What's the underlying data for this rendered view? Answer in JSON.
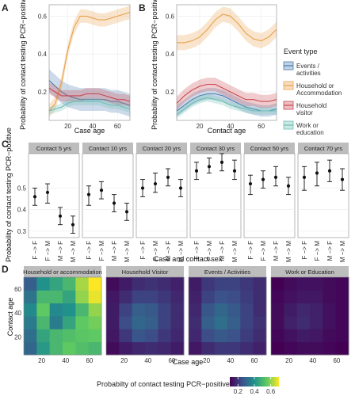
{
  "panels": {
    "A": {
      "label": "A",
      "xlabel": "Case age",
      "ylabel": "Probability of contact testing PCR−positive"
    },
    "B": {
      "label": "B",
      "xlabel": "Contact age",
      "ylabel": "Probability of contact testing PCR−positive"
    },
    "C": {
      "label": "C",
      "xlabel": "Case and contact sex",
      "ylabel": "Probability of contact testing PCR−positive"
    },
    "D": {
      "label": "D",
      "xlabel": "Case age",
      "ylabel": "Contact age"
    }
  },
  "legend": {
    "title": "Event type",
    "items": [
      {
        "name": "Events / activities",
        "color": "#4a7bb0"
      },
      {
        "name": "Household or Accommodation",
        "color": "#e8a04a"
      },
      {
        "name": "Household visitor",
        "color": "#c9474f"
      },
      {
        "name": "Work or education",
        "color": "#6dbdb4"
      }
    ]
  },
  "colorbar": {
    "title": "Probabilty of contact testing PCR−positive",
    "ticks": [
      "0.2",
      "0.4",
      "0.6"
    ],
    "min": 0.1,
    "max": 0.7
  },
  "chart_data": [
    {
      "panel": "A",
      "type": "line",
      "xlim": [
        5,
        70
      ],
      "ylim": [
        0.05,
        0.66
      ],
      "xticks": [
        20,
        40,
        60
      ],
      "yticks": [
        0.2,
        0.4,
        0.6
      ],
      "x": [
        5,
        10,
        15,
        20,
        25,
        30,
        35,
        40,
        45,
        50,
        55,
        60,
        65,
        70
      ],
      "series": [
        {
          "name": "Events / activities",
          "color": "#4a7bb0",
          "y": [
            0.26,
            0.23,
            0.2,
            0.18,
            0.17,
            0.16,
            0.16,
            0.16,
            0.16,
            0.16,
            0.15,
            0.15,
            0.14,
            0.13
          ],
          "band": 0.06
        },
        {
          "name": "Household or Accommodation",
          "color": "#e8a04a",
          "y": [
            0.1,
            0.14,
            0.25,
            0.42,
            0.54,
            0.6,
            0.6,
            0.59,
            0.58,
            0.58,
            0.59,
            0.6,
            0.61,
            0.62
          ],
          "band": 0.035
        },
        {
          "name": "Household visitor",
          "color": "#c9474f",
          "y": [
            0.22,
            0.2,
            0.18,
            0.18,
            0.18,
            0.18,
            0.19,
            0.19,
            0.19,
            0.18,
            0.17,
            0.16,
            0.16,
            0.15
          ],
          "band": 0.03
        },
        {
          "name": "Work or education",
          "color": "#6dbdb4",
          "y": [
            0.1,
            0.11,
            0.12,
            0.14,
            0.15,
            0.15,
            0.15,
            0.15,
            0.15,
            0.14,
            0.13,
            0.13,
            0.12,
            0.11
          ],
          "band": 0.02
        }
      ]
    },
    {
      "panel": "B",
      "type": "line",
      "xlim": [
        5,
        70
      ],
      "ylim": [
        0.05,
        0.66
      ],
      "xticks": [
        20,
        40,
        60
      ],
      "yticks": [
        0.2,
        0.4,
        0.6
      ],
      "x": [
        5,
        10,
        15,
        20,
        25,
        30,
        35,
        40,
        45,
        50,
        55,
        60,
        65,
        70
      ],
      "series": [
        {
          "name": "Events / activities",
          "color": "#4a7bb0",
          "y": [
            0.1,
            0.13,
            0.16,
            0.18,
            0.19,
            0.19,
            0.18,
            0.16,
            0.14,
            0.12,
            0.11,
            0.1,
            0.1,
            0.11
          ],
          "band": 0.03
        },
        {
          "name": "Household or Accommodation",
          "color": "#e8a04a",
          "y": [
            0.46,
            0.46,
            0.47,
            0.49,
            0.53,
            0.58,
            0.61,
            0.6,
            0.56,
            0.51,
            0.48,
            0.47,
            0.49,
            0.53
          ],
          "band": 0.04
        },
        {
          "name": "Household visitor",
          "color": "#c9474f",
          "y": [
            0.14,
            0.18,
            0.21,
            0.23,
            0.24,
            0.24,
            0.22,
            0.2,
            0.18,
            0.16,
            0.16,
            0.15,
            0.15,
            0.16
          ],
          "band": 0.035
        },
        {
          "name": "Work or education",
          "color": "#6dbdb4",
          "y": [
            0.08,
            0.11,
            0.14,
            0.16,
            0.17,
            0.16,
            0.15,
            0.13,
            0.12,
            0.11,
            0.1,
            0.1,
            0.1,
            0.1
          ],
          "band": 0.02
        }
      ]
    },
    {
      "panel": "C",
      "type": "scatter",
      "ylim": [
        0.27,
        0.66
      ],
      "yticks": [
        0.3,
        0.4,
        0.5
      ],
      "categories": [
        "F −> F",
        "F −> M",
        "M −> F",
        "M −> M"
      ],
      "facets": [
        {
          "title": "Contact 5 yrs",
          "values": [
            0.46,
            0.48,
            0.37,
            0.33
          ],
          "lower": [
            0.42,
            0.43,
            0.33,
            0.29
          ],
          "upper": [
            0.5,
            0.52,
            0.41,
            0.37
          ]
        },
        {
          "title": "Contact 10 yrs",
          "values": [
            0.47,
            0.49,
            0.43,
            0.39
          ],
          "lower": [
            0.42,
            0.45,
            0.39,
            0.35
          ],
          "upper": [
            0.51,
            0.53,
            0.47,
            0.43
          ]
        },
        {
          "title": "Contact 20 yrs",
          "values": [
            0.5,
            0.52,
            0.55,
            0.5
          ],
          "lower": [
            0.46,
            0.48,
            0.51,
            0.46
          ],
          "upper": [
            0.54,
            0.57,
            0.59,
            0.54
          ]
        },
        {
          "title": "Contact 30 yrs",
          "values": [
            0.58,
            0.6,
            0.62,
            0.58
          ],
          "lower": [
            0.54,
            0.57,
            0.58,
            0.54
          ],
          "upper": [
            0.62,
            0.64,
            0.66,
            0.63
          ]
        },
        {
          "title": "Contact 50 yrs",
          "values": [
            0.52,
            0.54,
            0.55,
            0.51
          ],
          "lower": [
            0.47,
            0.5,
            0.51,
            0.47
          ],
          "upper": [
            0.56,
            0.58,
            0.6,
            0.55
          ]
        },
        {
          "title": "Contact 70 yrs",
          "values": [
            0.55,
            0.57,
            0.58,
            0.54
          ],
          "lower": [
            0.49,
            0.51,
            0.53,
            0.49
          ],
          "upper": [
            0.6,
            0.62,
            0.63,
            0.59
          ]
        }
      ]
    },
    {
      "panel": "D",
      "type": "heatmap",
      "xlim": [
        5,
        70
      ],
      "ylim": [
        5,
        70
      ],
      "xticks": [
        20,
        40,
        60
      ],
      "yticks": [
        20,
        40,
        60
      ],
      "x": [
        5,
        18,
        31,
        44,
        57,
        70
      ],
      "y": [
        5,
        18,
        31,
        44,
        57,
        70
      ],
      "facets": [
        {
          "title": "Household or accommodation",
          "z": [
            [
              0.3,
              0.42,
              0.5,
              0.55,
              0.52,
              0.5
            ],
            [
              0.32,
              0.45,
              0.5,
              0.52,
              0.54,
              0.55
            ],
            [
              0.35,
              0.5,
              0.35,
              0.45,
              0.55,
              0.57
            ],
            [
              0.38,
              0.55,
              0.38,
              0.4,
              0.5,
              0.6
            ],
            [
              0.33,
              0.5,
              0.5,
              0.45,
              0.6,
              0.68
            ],
            [
              0.28,
              0.4,
              0.45,
              0.5,
              0.62,
              0.72
            ]
          ]
        },
        {
          "title": "Household Visitor",
          "z": [
            [
              0.12,
              0.15,
              0.17,
              0.18,
              0.17,
              0.15
            ],
            [
              0.14,
              0.2,
              0.26,
              0.24,
              0.2,
              0.17
            ],
            [
              0.15,
              0.24,
              0.3,
              0.28,
              0.22,
              0.18
            ],
            [
              0.15,
              0.22,
              0.28,
              0.27,
              0.22,
              0.18
            ],
            [
              0.14,
              0.18,
              0.22,
              0.22,
              0.2,
              0.17
            ],
            [
              0.12,
              0.15,
              0.18,
              0.19,
              0.18,
              0.16
            ]
          ]
        },
        {
          "title": "Events / Activities",
          "z": [
            [
              0.14,
              0.18,
              0.2,
              0.2,
              0.18,
              0.16
            ],
            [
              0.17,
              0.24,
              0.27,
              0.25,
              0.21,
              0.18
            ],
            [
              0.18,
              0.28,
              0.32,
              0.28,
              0.22,
              0.19
            ],
            [
              0.17,
              0.26,
              0.3,
              0.27,
              0.22,
              0.18
            ],
            [
              0.16,
              0.22,
              0.25,
              0.24,
              0.21,
              0.18
            ],
            [
              0.15,
              0.2,
              0.22,
              0.22,
              0.2,
              0.18
            ]
          ]
        },
        {
          "title": "Work or Education",
          "z": [
            [
              0.1,
              0.11,
              0.12,
              0.12,
              0.11,
              0.1
            ],
            [
              0.11,
              0.13,
              0.15,
              0.14,
              0.12,
              0.11
            ],
            [
              0.12,
              0.16,
              0.18,
              0.16,
              0.13,
              0.11
            ],
            [
              0.12,
              0.15,
              0.17,
              0.16,
              0.13,
              0.11
            ],
            [
              0.11,
              0.13,
              0.14,
              0.14,
              0.12,
              0.11
            ],
            [
              0.1,
              0.12,
              0.13,
              0.13,
              0.12,
              0.11
            ]
          ]
        }
      ]
    }
  ]
}
